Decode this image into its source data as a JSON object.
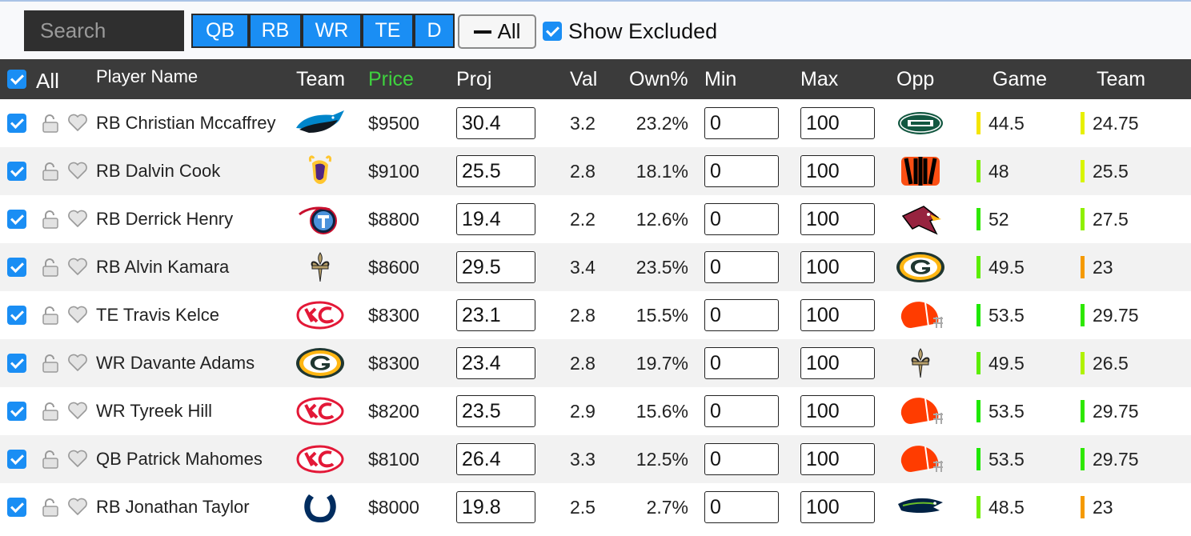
{
  "toolbar": {
    "search_placeholder": "Search",
    "positions": [
      "QB",
      "RB",
      "WR",
      "TE",
      "D"
    ],
    "all_label": "All",
    "show_excluded_label": "Show Excluded",
    "show_excluded_checked": true
  },
  "table": {
    "headers": {
      "select_all": "All",
      "player_name": "Player Name",
      "team": "Team",
      "price": "Price",
      "proj": "Proj",
      "val": "Val",
      "own": "Own%",
      "min": "Min",
      "max": "Max",
      "opp": "Opp",
      "game": "Game",
      "team_total": "Team"
    },
    "rows": [
      {
        "name": "RB Christian Mccaffrey",
        "team_logo": "panthers-logo",
        "price": "$9500",
        "proj": "30.4",
        "val": "3.2",
        "own": "23.2%",
        "min": "0",
        "max": "100",
        "opp_logo": "jets-logo",
        "game": "44.5",
        "game_color": "#f5e500",
        "team_total": "24.75",
        "team_color": "#e7f000"
      },
      {
        "name": "RB Dalvin Cook",
        "team_logo": "vikings-logo",
        "price": "$9100",
        "proj": "25.5",
        "val": "2.8",
        "own": "18.1%",
        "min": "0",
        "max": "100",
        "opp_logo": "bengals-logo",
        "game": "48",
        "game_color": "#7bf000",
        "team_total": "25.5",
        "team_color": "#d8f500"
      },
      {
        "name": "RB Derrick Henry",
        "team_logo": "titans-logo",
        "price": "$8800",
        "proj": "19.4",
        "val": "2.2",
        "own": "12.6%",
        "min": "0",
        "max": "100",
        "opp_logo": "cardinals-logo",
        "game": "52",
        "game_color": "#2ee800",
        "team_total": "27.5",
        "team_color": "#8ff000"
      },
      {
        "name": "RB Alvin Kamara",
        "team_logo": "saints-logo",
        "price": "$8600",
        "proj": "29.5",
        "val": "3.4",
        "own": "23.5%",
        "min": "0",
        "max": "100",
        "opp_logo": "packers-logo",
        "game": "49.5",
        "game_color": "#5cee00",
        "team_total": "23",
        "team_color": "#f59a00"
      },
      {
        "name": "TE Travis Kelce",
        "team_logo": "chiefs-logo",
        "price": "$8300",
        "proj": "23.1",
        "val": "2.8",
        "own": "15.5%",
        "min": "0",
        "max": "100",
        "opp_logo": "browns-logo",
        "game": "53.5",
        "game_color": "#1ee800",
        "team_total": "29.75",
        "team_color": "#2ee800"
      },
      {
        "name": "WR Davante Adams",
        "team_logo": "packers-logo",
        "price": "$8300",
        "proj": "23.4",
        "val": "2.8",
        "own": "19.7%",
        "min": "0",
        "max": "100",
        "opp_logo": "saints-logo",
        "game": "49.5",
        "game_color": "#5cee00",
        "team_total": "26.5",
        "team_color": "#b0f200"
      },
      {
        "name": "WR Tyreek Hill",
        "team_logo": "chiefs-logo",
        "price": "$8200",
        "proj": "23.5",
        "val": "2.9",
        "own": "15.6%",
        "min": "0",
        "max": "100",
        "opp_logo": "browns-logo",
        "game": "53.5",
        "game_color": "#1ee800",
        "team_total": "29.75",
        "team_color": "#2ee800"
      },
      {
        "name": "QB Patrick Mahomes",
        "team_logo": "chiefs-logo",
        "price": "$8100",
        "proj": "26.4",
        "val": "3.3",
        "own": "12.5%",
        "min": "0",
        "max": "100",
        "opp_logo": "browns-logo",
        "game": "53.5",
        "game_color": "#1ee800",
        "team_total": "29.75",
        "team_color": "#2ee800"
      },
      {
        "name": "RB Jonathan Taylor",
        "team_logo": "colts-logo",
        "price": "$8000",
        "proj": "19.8",
        "val": "2.5",
        "own": "2.7%",
        "min": "0",
        "max": "100",
        "opp_logo": "seahawks-logo",
        "game": "48.5",
        "game_color": "#6ef000",
        "team_total": "23",
        "team_color": "#f59a00"
      }
    ]
  },
  "colors": {
    "accent": "#1a8ef4",
    "price_header": "#3ed23e",
    "header_bg": "#3b3b3b"
  }
}
